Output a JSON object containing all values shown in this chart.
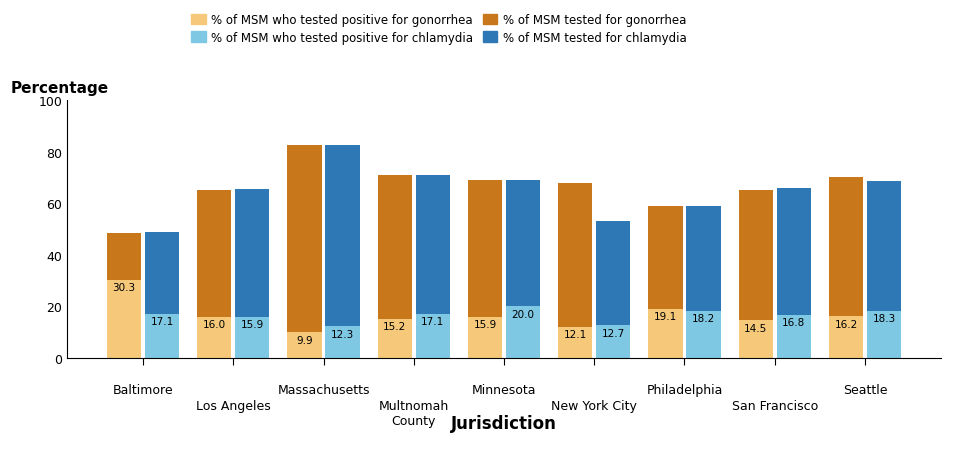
{
  "jurisdictions": [
    "Baltimore",
    "Los Angeles",
    "Massachusetts",
    "Multnomah\nCounty",
    "Minnesota",
    "New York City",
    "Philadelphia",
    "San Francisco",
    "Seattle"
  ],
  "gonorrhea_positive": [
    30.3,
    16.0,
    9.9,
    15.2,
    15.9,
    12.1,
    19.1,
    14.5,
    16.2
  ],
  "gonorrhea_total": [
    48.5,
    65.0,
    82.5,
    71.0,
    69.0,
    68.0,
    59.0,
    65.0,
    70.0
  ],
  "chlamydia_positive": [
    17.1,
    15.9,
    12.3,
    17.1,
    20.0,
    12.7,
    18.2,
    16.8,
    18.3
  ],
  "chlamydia_total": [
    49.0,
    65.5,
    82.5,
    71.0,
    69.0,
    53.0,
    59.0,
    66.0,
    68.5
  ],
  "color_gonorrhea_positive": "#F5C87A",
  "color_gonorrhea_tested": "#C8781A",
  "color_chlamydia_positive": "#7EC8E3",
  "color_chlamydia_tested": "#2E78B5",
  "ylabel": "Percentage",
  "xlabel": "Jurisdiction",
  "ylim": [
    0,
    100
  ],
  "yticks": [
    0,
    20,
    40,
    60,
    80,
    100
  ],
  "legend_labels": [
    "% of MSM who tested positive for gonorrhea",
    "% of MSM who tested positive for chlamydia",
    "% of MSM tested for gonorrhea",
    "% of MSM tested for chlamydia"
  ],
  "bar_width": 0.38,
  "bar_gap": 0.04
}
